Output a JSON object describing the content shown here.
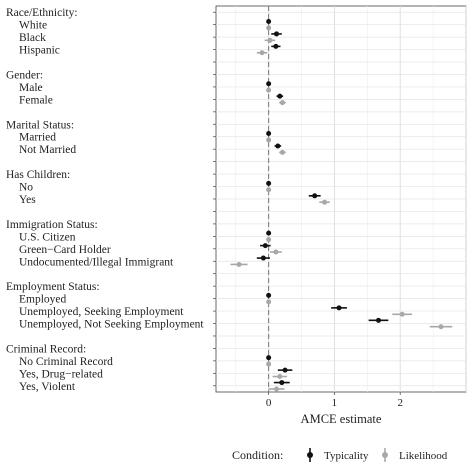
{
  "chart_data": {
    "type": "scatter",
    "subtype": "coefficient-plot",
    "xlabel": "AMCE estimate",
    "ylabel": "",
    "xlim": [
      -0.8,
      3.0
    ],
    "x_ticks": [
      0,
      1,
      2
    ],
    "reference_line": 0,
    "grid": true,
    "legend": {
      "position": "bottom",
      "title": "Condition:",
      "entries": [
        "Typicality",
        "Likelihood"
      ]
    },
    "colors": {
      "Typicality": "#111111",
      "Likelihood": "#a8a8a8"
    },
    "rows": [
      {
        "label": "Race/Ethnicity:",
        "header": true
      },
      {
        "label": "White",
        "typicality": [
          0,
          0,
          0
        ],
        "likelihood": [
          0,
          0,
          0
        ]
      },
      {
        "label": "Black",
        "typicality": [
          0.12,
          0.04,
          0.2
        ],
        "likelihood": [
          0.02,
          -0.06,
          0.1
        ]
      },
      {
        "label": "Hispanic",
        "typicality": [
          0.11,
          0.04,
          0.18
        ],
        "likelihood": [
          -0.1,
          -0.18,
          -0.02
        ]
      },
      {
        "label": ""
      },
      {
        "label": "Gender:",
        "header": true
      },
      {
        "label": "Male",
        "typicality": [
          0,
          0,
          0
        ],
        "likelihood": [
          0,
          0,
          0
        ]
      },
      {
        "label": "Female",
        "typicality": [
          0.17,
          0.12,
          0.22
        ],
        "likelihood": [
          0.21,
          0.16,
          0.26
        ]
      },
      {
        "label": ""
      },
      {
        "label": "Marital Status:",
        "header": true
      },
      {
        "label": "Married",
        "typicality": [
          0,
          0,
          0
        ],
        "likelihood": [
          0,
          0,
          0
        ]
      },
      {
        "label": "Not Married",
        "typicality": [
          0.14,
          0.09,
          0.19
        ],
        "likelihood": [
          0.21,
          0.16,
          0.26
        ]
      },
      {
        "label": ""
      },
      {
        "label": "Has Children:",
        "header": true
      },
      {
        "label": "No",
        "typicality": [
          0,
          0,
          0
        ],
        "likelihood": [
          0,
          0,
          0
        ]
      },
      {
        "label": "Yes",
        "typicality": [
          0.7,
          0.61,
          0.79
        ],
        "likelihood": [
          0.85,
          0.77,
          0.93
        ]
      },
      {
        "label": ""
      },
      {
        "label": "Immigration Status:",
        "header": true
      },
      {
        "label": "U.S. Citizen",
        "typicality": [
          0,
          0,
          0
        ],
        "likelihood": [
          0,
          0,
          0
        ]
      },
      {
        "label": "Green−Card Holder",
        "typicality": [
          -0.05,
          -0.13,
          0.03
        ],
        "likelihood": [
          0.11,
          0.02,
          0.2
        ]
      },
      {
        "label": "Undocumented/Illegal Immigrant",
        "typicality": [
          -0.08,
          -0.18,
          0.02
        ],
        "likelihood": [
          -0.45,
          -0.58,
          -0.32
        ]
      },
      {
        "label": ""
      },
      {
        "label": "Employment Status:",
        "header": true
      },
      {
        "label": "Employed",
        "typicality": [
          0,
          0,
          0
        ],
        "likelihood": [
          0,
          0,
          0
        ]
      },
      {
        "label": "Unemployed, Seeking Employment",
        "typicality": [
          1.07,
          0.95,
          1.19
        ],
        "likelihood": [
          2.03,
          1.88,
          2.18
        ]
      },
      {
        "label": "Unemployed, Not Seeking Employment",
        "typicality": [
          1.67,
          1.52,
          1.82
        ],
        "likelihood": [
          2.62,
          2.45,
          2.79
        ]
      },
      {
        "label": ""
      },
      {
        "label": "Criminal Record:",
        "header": true
      },
      {
        "label": "No Criminal Record",
        "typicality": [
          0,
          0,
          0
        ],
        "likelihood": [
          0,
          0,
          0
        ]
      },
      {
        "label": "Yes, Drug−related",
        "typicality": [
          0.25,
          0.14,
          0.36
        ],
        "likelihood": [
          0.17,
          0.06,
          0.28
        ]
      },
      {
        "label": "Yes, Violent",
        "typicality": [
          0.2,
          0.08,
          0.32
        ],
        "likelihood": [
          0.12,
          0.0,
          0.24
        ]
      }
    ]
  }
}
